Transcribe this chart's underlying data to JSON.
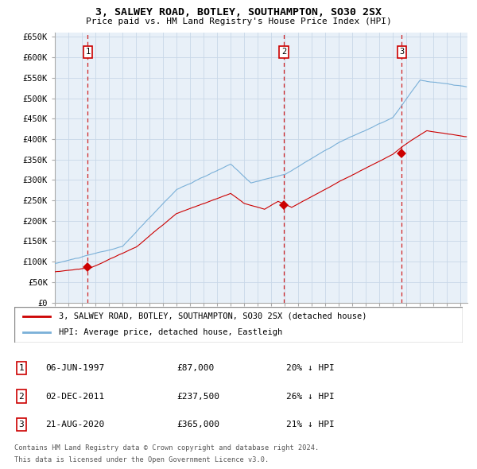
{
  "title": "3, SALWEY ROAD, BOTLEY, SOUTHAMPTON, SO30 2SX",
  "subtitle": "Price paid vs. HM Land Registry's House Price Index (HPI)",
  "fig_bg_color": "#ffffff",
  "plot_bg_color": "#e8f0f8",
  "grid_color": "#c8d8e8",
  "hpi_line_color": "#7ab0d8",
  "price_line_color": "#cc0000",
  "marker_color": "#cc0000",
  "dashed_line_color": "#cc0000",
  "ylim": [
    0,
    660000
  ],
  "yticks": [
    0,
    50000,
    100000,
    150000,
    200000,
    250000,
    300000,
    350000,
    400000,
    450000,
    500000,
    550000,
    600000,
    650000
  ],
  "ytick_labels": [
    "£0",
    "£50K",
    "£100K",
    "£150K",
    "£200K",
    "£250K",
    "£300K",
    "£350K",
    "£400K",
    "£450K",
    "£500K",
    "£550K",
    "£600K",
    "£650K"
  ],
  "xlim_start": 1995.0,
  "xlim_end": 2025.5,
  "purchases": [
    {
      "label": "1",
      "date_num": 1997.43,
      "price": 87000,
      "date_str": "06-JUN-1997",
      "price_str": "£87,000",
      "pct": "20%"
    },
    {
      "label": "2",
      "date_num": 2011.92,
      "price": 237500,
      "date_str": "02-DEC-2011",
      "price_str": "£237,500",
      "pct": "26%"
    },
    {
      "label": "3",
      "date_num": 2020.65,
      "price": 365000,
      "date_str": "21-AUG-2020",
      "price_str": "£365,000",
      "pct": "21%"
    }
  ],
  "legend_label_price": "3, SALWEY ROAD, BOTLEY, SOUTHAMPTON, SO30 2SX (detached house)",
  "legend_label_hpi": "HPI: Average price, detached house, Eastleigh",
  "footer_line1": "Contains HM Land Registry data © Crown copyright and database right 2024.",
  "footer_line2": "This data is licensed under the Open Government Licence v3.0."
}
